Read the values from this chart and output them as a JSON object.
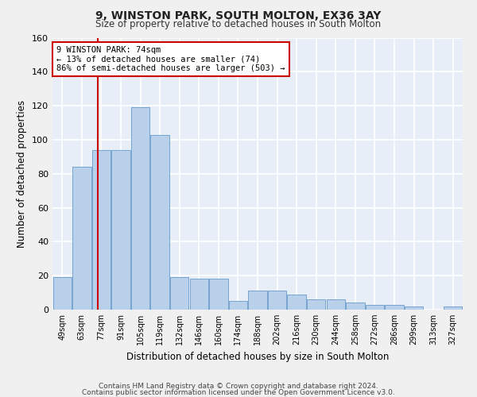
{
  "title1": "9, WINSTON PARK, SOUTH MOLTON, EX36 3AY",
  "title2": "Size of property relative to detached houses in South Molton",
  "xlabel": "Distribution of detached houses by size in South Molton",
  "ylabel": "Number of detached properties",
  "bin_labels": [
    "49sqm",
    "63sqm",
    "77sqm",
    "91sqm",
    "105sqm",
    "119sqm",
    "132sqm",
    "146sqm",
    "160sqm",
    "174sqm",
    "188sqm",
    "202sqm",
    "216sqm",
    "230sqm",
    "244sqm",
    "258sqm",
    "272sqm",
    "286sqm",
    "299sqm",
    "313sqm",
    "327sqm"
  ],
  "bar_values": [
    19,
    84,
    94,
    94,
    119,
    103,
    19,
    18,
    18,
    5,
    11,
    11,
    9,
    6,
    6,
    4,
    3,
    3,
    2,
    0,
    2
  ],
  "bar_color": "#b8d0ea",
  "bar_edge_color": "#6699cc",
  "background_color": "#e8eef8",
  "grid_color": "#ffffff",
  "fig_background": "#f0f0f0",
  "vline_color": "#cc0000",
  "annotation_line1": "9 WINSTON PARK: 74sqm",
  "annotation_line2": "← 13% of detached houses are smaller (74)",
  "annotation_line3": "86% of semi-detached houses are larger (503) →",
  "annotation_box_color": "#ffffff",
  "annotation_box_edgecolor": "#cc0000",
  "footnote1": "Contains HM Land Registry data © Crown copyright and database right 2024.",
  "footnote2": "Contains public sector information licensed under the Open Government Licence v3.0.",
  "ylim": [
    0,
    160
  ],
  "yticks": [
    0,
    20,
    40,
    60,
    80,
    100,
    120,
    140,
    160
  ]
}
